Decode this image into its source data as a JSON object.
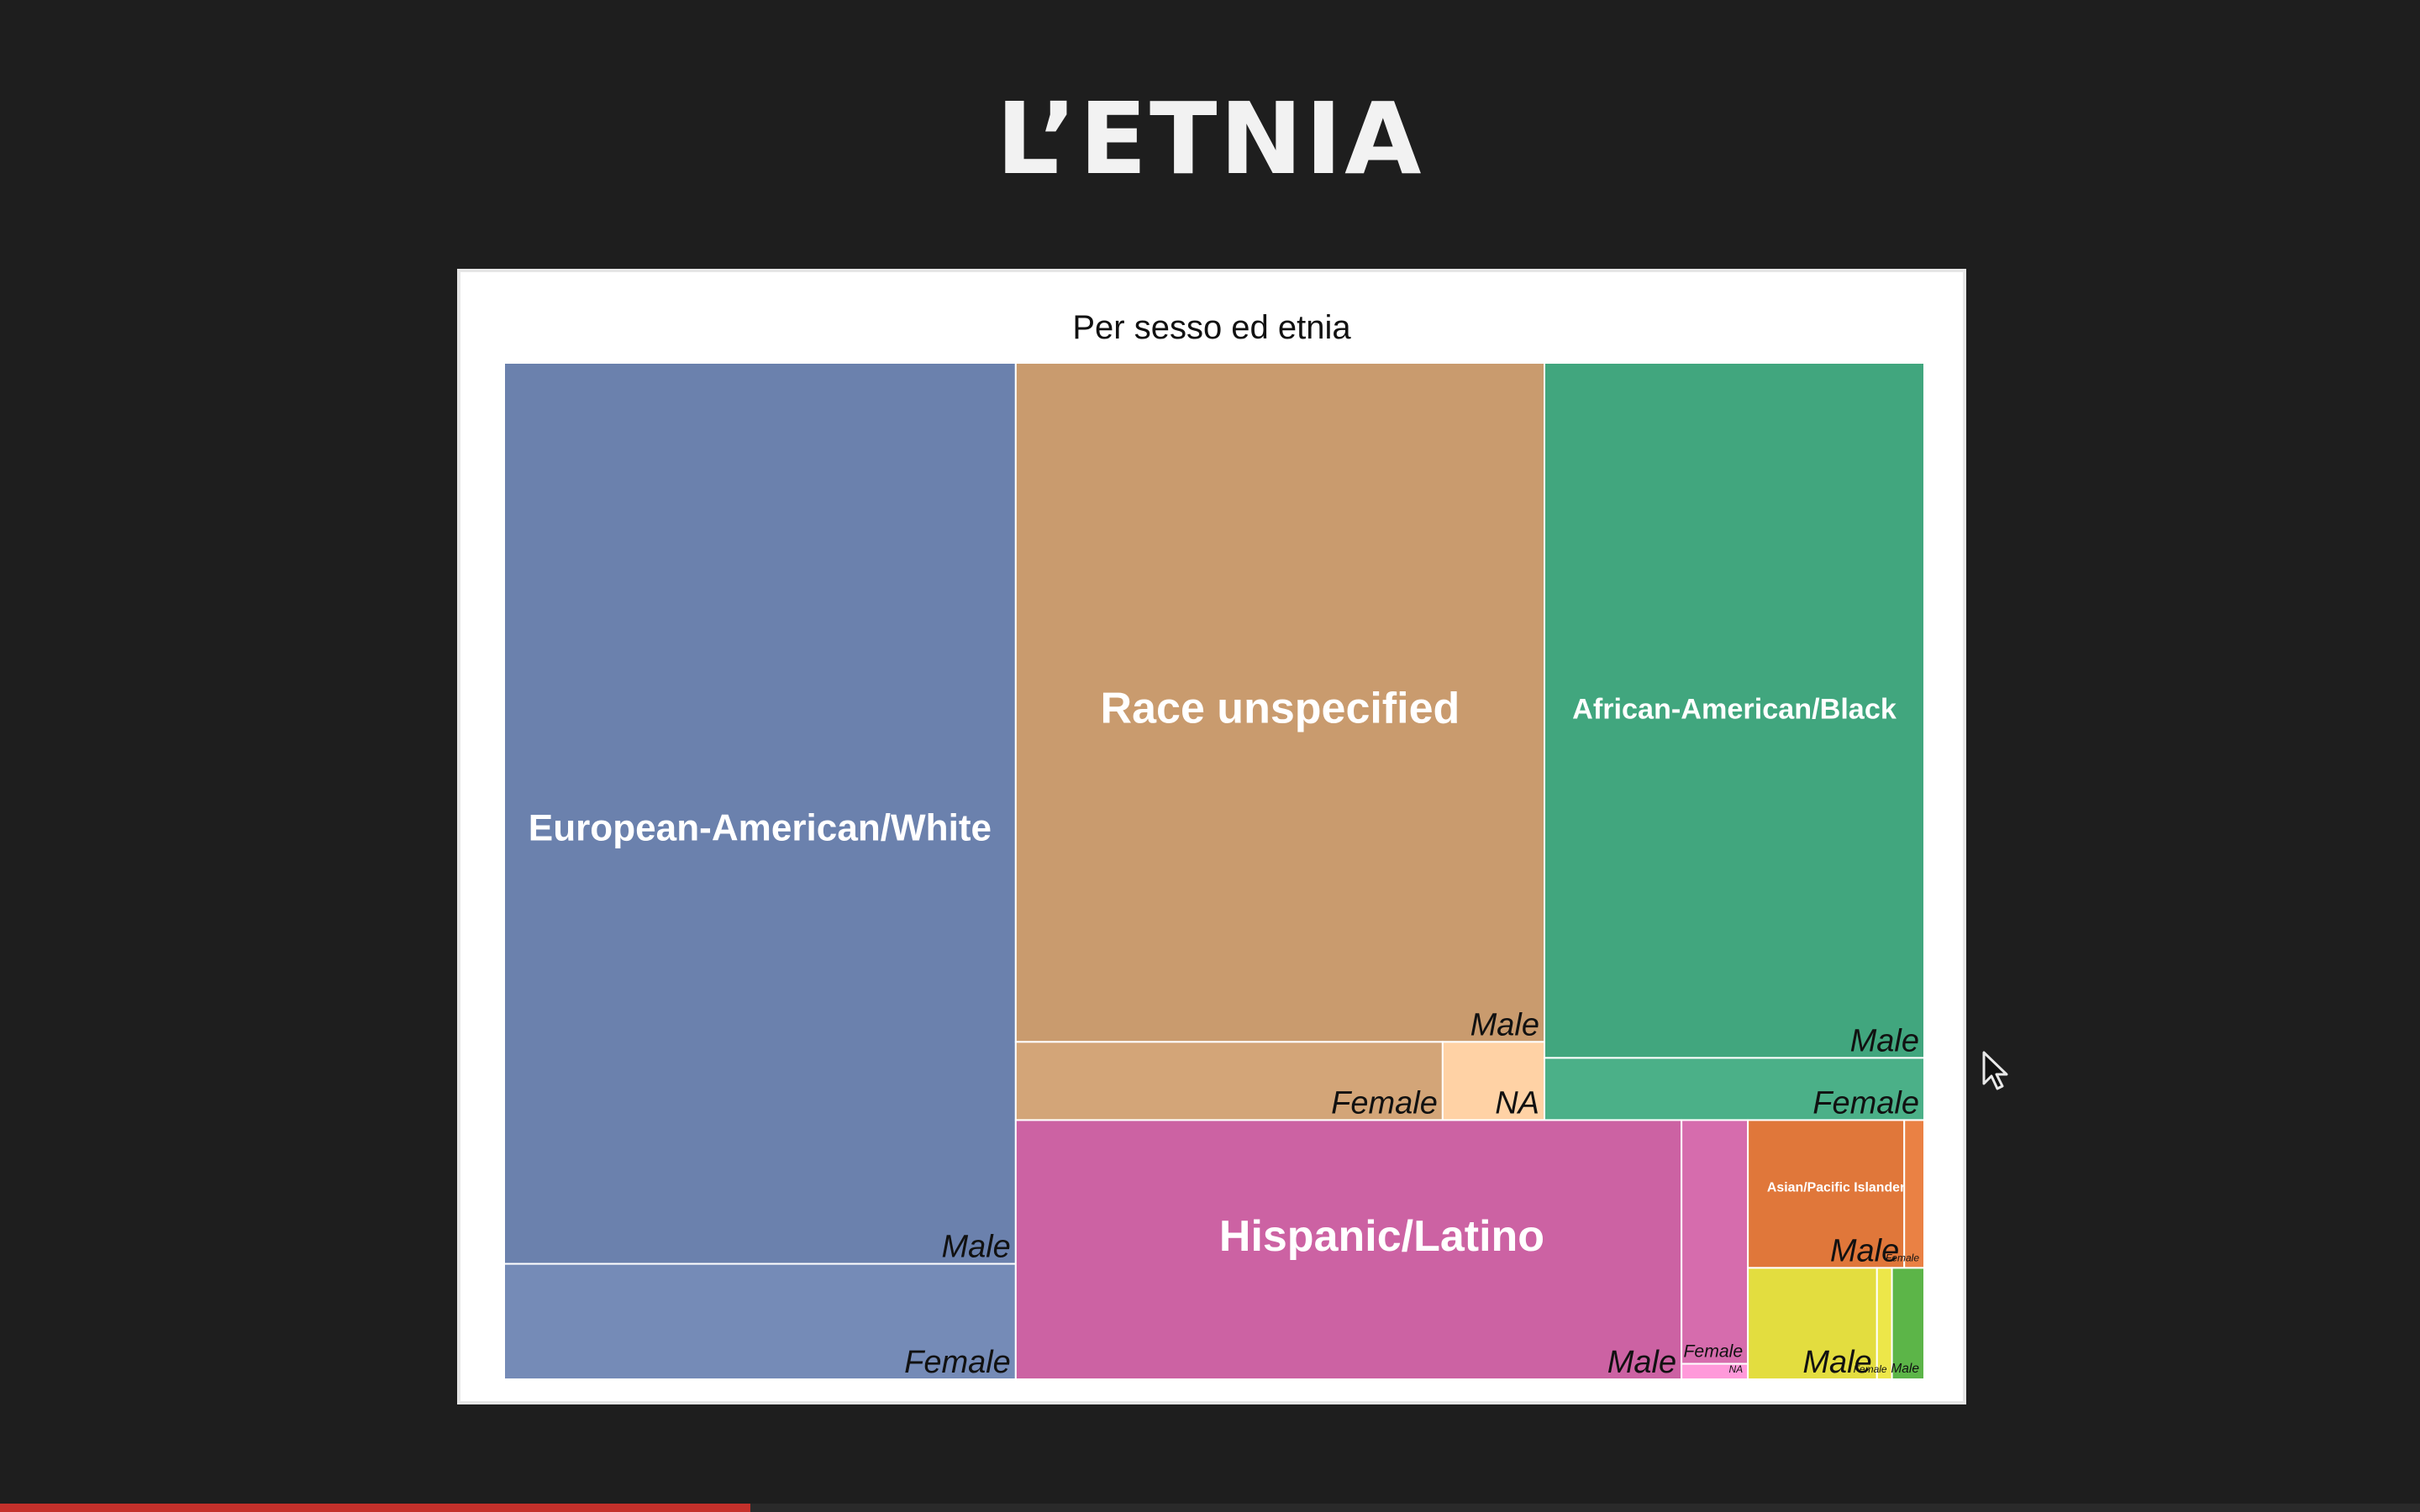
{
  "slide": {
    "title": "L’ETNIA"
  },
  "video": {
    "progress": 0.31
  },
  "chart_data": {
    "type": "treemap",
    "title": "Per sesso ed etnia",
    "groups": [
      {
        "name": "European-American/White",
        "color": "#6b81ad",
        "children": [
          {
            "name": "Male",
            "value": 17950
          },
          {
            "name": "Female",
            "value": 2300
          }
        ]
      },
      {
        "name": "Race unspecified",
        "color": "#c99b6e",
        "children": [
          {
            "name": "Male",
            "value": 13980
          },
          {
            "name": "Female",
            "value": 1300
          },
          {
            "name": "NA",
            "value": 310
          }
        ]
      },
      {
        "name": "African-American/Black",
        "color": "#41a67e",
        "children": [
          {
            "name": "Male",
            "value": 10280
          },
          {
            "name": "Female",
            "value": 920
          }
        ]
      },
      {
        "name": "Hispanic/Latino",
        "color": "#cc62a3",
        "children": [
          {
            "name": "Male",
            "value": 6720
          },
          {
            "name": "Female",
            "value": 630
          },
          {
            "name": "NA",
            "value": 40
          }
        ]
      },
      {
        "name": "Asian/Pacific Islander",
        "color": "#e0773a",
        "children": [
          {
            "name": "Male",
            "value": 900
          },
          {
            "name": "Female",
            "value": 115
          }
        ]
      },
      {
        "name": "",
        "color": "#e3dd3f",
        "children": [
          {
            "name": "Male",
            "value": 560
          },
          {
            "name": "Female",
            "value": 65
          }
        ]
      },
      {
        "name": "",
        "color": "#5cb548",
        "children": [
          {
            "name": "Male",
            "value": 140
          }
        ]
      }
    ]
  }
}
